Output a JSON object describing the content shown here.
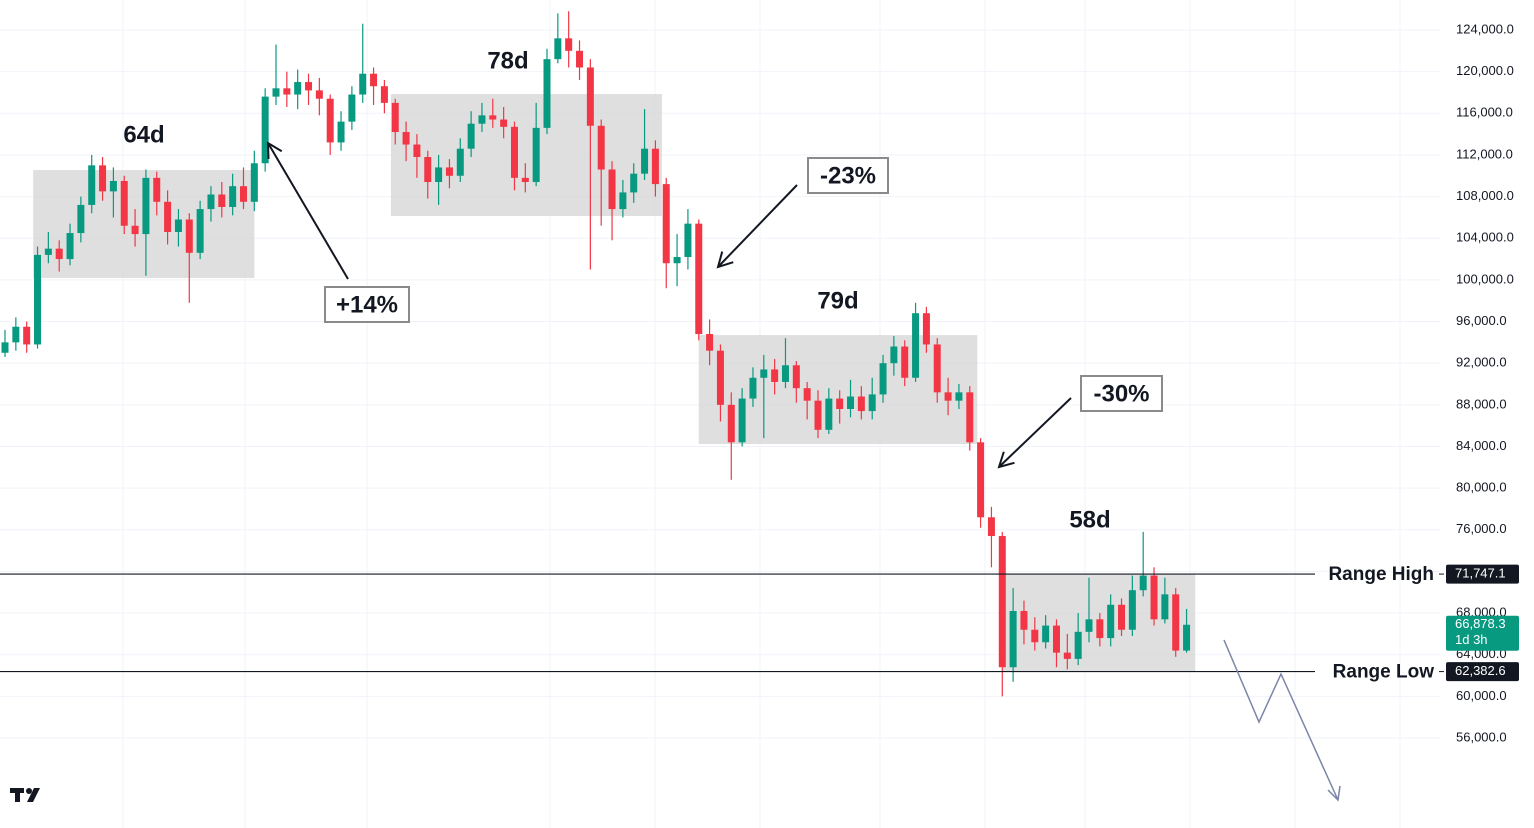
{
  "chart_data": {
    "type": "candlestick",
    "open": [
      93000,
      94000,
      95500,
      93800,
      102400,
      103000,
      102000,
      104500,
      107200,
      111000,
      108500,
      109500,
      105200,
      104400,
      109800,
      107500,
      104600,
      105800,
      102600,
      106800,
      108200,
      107000,
      109000,
      107500,
      111200,
      117600,
      118400,
      117800,
      119000,
      118200,
      117400,
      113200,
      115200,
      117800,
      119800,
      118600,
      117000,
      114200,
      113000,
      111800,
      109400,
      110800,
      110000,
      112600,
      115000,
      115800,
      115400,
      114700,
      109800,
      109400,
      114600,
      121200,
      123200,
      122000,
      120400,
      114800,
      110600,
      106800,
      108400,
      110200,
      112600,
      109200,
      101600,
      102200,
      105400,
      94800,
      93200,
      88000,
      84400,
      88600,
      90600,
      91400,
      90200,
      91800,
      89600,
      88400,
      85600,
      88600,
      87600,
      88800,
      87400,
      89000,
      92000,
      93600,
      90600,
      96800,
      93800,
      89200,
      88400,
      89200,
      84400,
      77200,
      75400,
      62800,
      68200,
      66400,
      65200,
      66800,
      64200,
      63600,
      66200,
      67400,
      65600,
      68800,
      66400,
      70200,
      71600,
      67400,
      69800,
      64400
    ],
    "high": [
      95200,
      96400,
      96000,
      103200,
      104600,
      103800,
      105400,
      108000,
      112000,
      111800,
      110800,
      110000,
      106800,
      110600,
      110400,
      108600,
      106800,
      106400,
      107600,
      109000,
      109400,
      110200,
      110800,
      112400,
      118400,
      122600,
      120000,
      120200,
      119800,
      119400,
      117800,
      116200,
      118600,
      124600,
      120400,
      119200,
      117400,
      115200,
      114000,
      112400,
      112000,
      111600,
      113600,
      116200,
      117000,
      117400,
      116600,
      115200,
      111200,
      117000,
      122200,
      125600,
      125800,
      123000,
      121200,
      115400,
      111400,
      109600,
      111200,
      116400,
      113400,
      109800,
      104400,
      106800,
      105800,
      96200,
      93800,
      89200,
      89600,
      91600,
      92800,
      92400,
      94400,
      92200,
      90200,
      89400,
      89600,
      89400,
      90400,
      89800,
      90600,
      92800,
      94600,
      94200,
      97800,
      97400,
      94400,
      90600,
      90000,
      89800,
      84800,
      78200,
      75800,
      70400,
      69200,
      67600,
      67800,
      67400,
      66000,
      68000,
      71400,
      68000,
      69800,
      69400,
      71600,
      75800,
      72400,
      71400,
      70400,
      68400
    ],
    "low": [
      92600,
      93200,
      93000,
      93400,
      101600,
      100800,
      101400,
      103600,
      106400,
      107600,
      106000,
      104400,
      103200,
      100400,
      106200,
      103400,
      103200,
      97800,
      102000,
      105600,
      106000,
      106200,
      106800,
      106600,
      110400,
      116800,
      116600,
      116400,
      116800,
      115800,
      112000,
      112400,
      114400,
      117000,
      116800,
      116000,
      113000,
      111400,
      109800,
      107800,
      107200,
      108800,
      109400,
      111800,
      114200,
      114600,
      113600,
      108600,
      108400,
      109000,
      114000,
      120800,
      120400,
      119200,
      101000,
      105200,
      103800,
      106000,
      107400,
      109600,
      108000,
      99200,
      99400,
      101000,
      94200,
      91800,
      86400,
      80800,
      84000,
      87800,
      84800,
      89000,
      89600,
      88200,
      86600,
      84800,
      85200,
      86200,
      86800,
      86600,
      86600,
      88200,
      90800,
      89800,
      90200,
      93000,
      88200,
      87000,
      87600,
      83600,
      76200,
      72400,
      60000,
      61400,
      65000,
      64400,
      64600,
      62800,
      62600,
      63000,
      65200,
      64800,
      64800,
      65800,
      65800,
      69600,
      66800,
      67000,
      63800,
      64200
    ],
    "close": [
      94000,
      95500,
      93800,
      102400,
      103000,
      102000,
      104500,
      107200,
      111000,
      108500,
      109500,
      105200,
      104400,
      109800,
      107500,
      104600,
      105800,
      102600,
      106800,
      108200,
      107000,
      109000,
      107500,
      111200,
      117600,
      118400,
      117800,
      119000,
      118200,
      117400,
      113200,
      115200,
      117800,
      119800,
      118600,
      117000,
      114200,
      113000,
      111800,
      109400,
      110800,
      110000,
      112600,
      115000,
      115800,
      115400,
      114700,
      109800,
      109400,
      114600,
      121200,
      123200,
      122000,
      120400,
      114800,
      110600,
      106800,
      108400,
      110200,
      112600,
      109200,
      101600,
      102200,
      105400,
      94800,
      93200,
      88000,
      84400,
      88600,
      90600,
      91400,
      90200,
      91800,
      89600,
      88400,
      85600,
      88600,
      87600,
      88800,
      87400,
      89000,
      92000,
      93600,
      90600,
      96800,
      93800,
      89200,
      88400,
      89200,
      84400,
      77200,
      75400,
      62800,
      68200,
      66400,
      65200,
      66800,
      64200,
      63600,
      66200,
      67400,
      65600,
      68800,
      66400,
      70200,
      71600,
      67400,
      69800,
      64400,
      66878.3
    ],
    "up_color": "#089981",
    "down_color": "#f23645",
    "ylim": [
      47360,
      126880
    ],
    "yticks": [
      {
        "value": 56000,
        "label": "56,000.0"
      },
      {
        "value": 60000,
        "label": "60,000.0"
      },
      {
        "value": 64000,
        "label": "64,000.0"
      },
      {
        "value": 68000,
        "label": "68,000.0"
      },
      {
        "value": 72000,
        "label": "72,000.0"
      },
      {
        "value": 76000,
        "label": "76,000.0"
      },
      {
        "value": 80000,
        "label": "80,000.0"
      },
      {
        "value": 84000,
        "label": "84,000.0"
      },
      {
        "value": 88000,
        "label": "88,000.0"
      },
      {
        "value": 92000,
        "label": "92,000.0"
      },
      {
        "value": 96000,
        "label": "96,000.0"
      },
      {
        "value": 100000,
        "label": "100,000.0"
      },
      {
        "value": 104000,
        "label": "104,000.0"
      },
      {
        "value": 108000,
        "label": "108,000.0"
      },
      {
        "value": 112000,
        "label": "112,000.0"
      },
      {
        "value": 116000,
        "label": "116,000.0"
      },
      {
        "value": 120000,
        "label": "120,000.0"
      },
      {
        "value": 124000,
        "label": "124,000.0"
      }
    ],
    "grid": true,
    "ranges": [
      {
        "label": "64d",
        "high": 110550,
        "low": 100180
      },
      {
        "label": "78d",
        "high": 117850,
        "low": 106140
      },
      {
        "label": "79d",
        "high": 94700,
        "low": 84240
      },
      {
        "label": "58d",
        "high": 71747.1,
        "low": 62382.6
      }
    ],
    "range_lines": [
      {
        "label": "Range High",
        "value": 71747.1,
        "value_label": "71,747.1"
      },
      {
        "label": "Range Low",
        "value": 62382.6,
        "value_label": "62,382.6"
      }
    ],
    "last_price": {
      "value": 66878.3,
      "label": "66,878.3",
      "countdown": "1d 3h"
    },
    "annotations": [
      "+14%",
      "-23%",
      "-30%"
    ]
  }
}
